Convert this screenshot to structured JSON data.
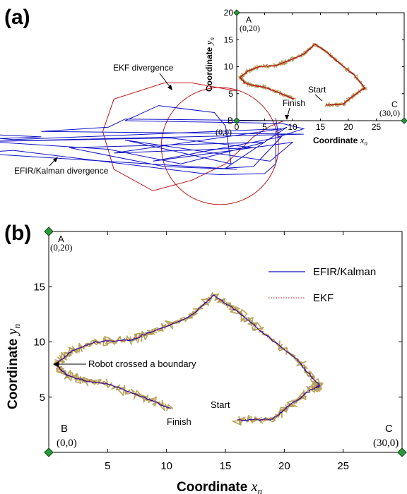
{
  "colors": {
    "efir": "#1010c8",
    "ekf": "#c01818",
    "noise": "#b8a25a",
    "marker": "#2a9a3a",
    "axis": "#000000"
  },
  "chart_data": [
    {
      "panel": "(a)",
      "type": "line",
      "xlim": [
        0,
        30
      ],
      "ylim": [
        0,
        20
      ],
      "xticks": [
        0,
        5,
        10,
        15,
        20,
        25
      ],
      "yticks": [
        0,
        5,
        10,
        15,
        20
      ],
      "xticklabels": [
        "0",
        "5",
        "10",
        "15",
        "20",
        "25"
      ],
      "yticklabels": [
        "B",
        "5",
        "10",
        "15",
        "20"
      ],
      "xlabel": "Coordinate",
      "xlabel_var": "x",
      "xlabel_sub": "n",
      "ylabel": "Coordinate",
      "ylabel_var": "y",
      "ylabel_sub": "n",
      "series": [
        {
          "name": "EFIR/Kalman",
          "role": "efir"
        },
        {
          "name": "EKF",
          "role": "ekf"
        }
      ],
      "annotations": {
        "ekf_divergence": "EKF divergence",
        "efir_divergence": "EFIR/Kalman divergence",
        "start": "Start",
        "finish": "Finish",
        "corner_a": "A",
        "corner_a_coord": "(0,20)",
        "corner_b_coord": "(0,0)",
        "corner_c": "C",
        "corner_c_coord": "(30,0)"
      }
    },
    {
      "panel": "(b)",
      "type": "line",
      "xlim": [
        0,
        30
      ],
      "ylim": [
        0,
        20
      ],
      "xticks": [
        5,
        10,
        15,
        20,
        25
      ],
      "yticks": [
        5,
        10,
        15
      ],
      "xticklabels": [
        "5",
        "10",
        "15",
        "20",
        "25"
      ],
      "yticklabels": [
        "5",
        "10",
        "15"
      ],
      "xlabel": "Coordinate",
      "xlabel_var": "x",
      "xlabel_sub": "n",
      "ylabel": "Coordinate",
      "ylabel_var": "y",
      "ylabel_sub": "n",
      "legend": [
        {
          "label": "EFIR/Kalman",
          "style": "solid"
        },
        {
          "label": "EKF",
          "style": "dotted"
        }
      ],
      "legend_position": "top-right",
      "trajectory": [
        [
          16,
          2.9
        ],
        [
          19,
          3.0
        ],
        [
          20.5,
          4.3
        ],
        [
          22.5,
          5.8
        ],
        [
          23,
          6.0
        ],
        [
          21,
          8.5
        ],
        [
          18,
          11.0
        ],
        [
          16,
          12.8
        ],
        [
          14,
          14.2
        ],
        [
          12,
          12.3
        ],
        [
          9,
          11.0
        ],
        [
          7,
          10.2
        ],
        [
          4,
          10.0
        ],
        [
          2,
          9.2
        ],
        [
          0.6,
          8.0
        ],
        [
          1.5,
          7.0
        ],
        [
          3,
          6.5
        ],
        [
          5,
          6.2
        ],
        [
          8,
          5.0
        ],
        [
          10.3,
          4.0
        ]
      ],
      "annotations": {
        "boundary": "Robot crossed a boundary",
        "start": "Start",
        "finish": "Finish",
        "corner_a": "A",
        "corner_a_coord": "(0,20)",
        "corner_b": "B",
        "corner_b_coord": "(0,0)",
        "corner_c": "C",
        "corner_c_coord": "(30,0)"
      }
    }
  ]
}
